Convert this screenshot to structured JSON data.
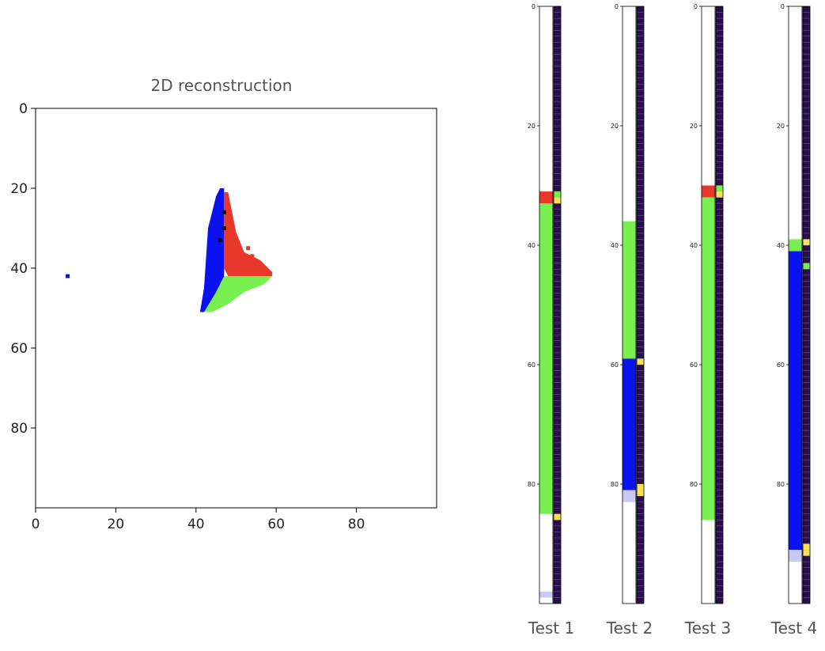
{
  "chart_data": [
    {
      "type": "heatmap",
      "title": "2D reconstruction",
      "xlim": [
        0,
        100
      ],
      "ylim": [
        100,
        0
      ],
      "xticks": [
        0,
        20,
        40,
        60,
        80
      ],
      "yticks": [
        0,
        20,
        40,
        60,
        80
      ],
      "colors": {
        "red": "#e8372b",
        "green": "#76ef4f",
        "blue": "#0a12ef",
        "black": "#111111"
      },
      "regions": [
        {
          "color": "blue",
          "points": [
            [
              46,
              20
            ],
            [
              47,
              20
            ],
            [
              47,
              48
            ],
            [
              43,
              51
            ],
            [
              41,
              51
            ],
            [
              42,
              45
            ],
            [
              43,
              30
            ],
            [
              45,
              22
            ]
          ]
        },
        {
          "color": "red",
          "points": [
            [
              47,
              21
            ],
            [
              48,
              21
            ],
            [
              50,
              31
            ],
            [
              52,
              36
            ],
            [
              56,
              38
            ],
            [
              59,
              41
            ],
            [
              59,
              42
            ],
            [
              48,
              42
            ],
            [
              47,
              40
            ]
          ]
        },
        {
          "color": "green",
          "points": [
            [
              47,
              42
            ],
            [
              59,
              42
            ],
            [
              57,
              44
            ],
            [
              52,
              46
            ],
            [
              48,
              49
            ],
            [
              44,
              51
            ],
            [
              42,
              51
            ],
            [
              45,
              46
            ]
          ]
        }
      ],
      "spots": [
        {
          "color": "blue",
          "x": 8,
          "y": 42
        },
        {
          "color": "red",
          "x": 54,
          "y": 37
        },
        {
          "color": "red",
          "x": 55,
          "y": 39
        },
        {
          "color": "red",
          "x": 53,
          "y": 35
        },
        {
          "color": "black",
          "x": 47,
          "y": 26
        },
        {
          "color": "black",
          "x": 47,
          "y": 30
        },
        {
          "color": "black",
          "x": 46,
          "y": 33
        }
      ]
    },
    {
      "type": "heatmap",
      "label": "Test 1",
      "yticks": [
        0,
        20,
        40,
        60,
        80
      ],
      "ylim": [
        0,
        100
      ],
      "segments": [
        {
          "color": "red",
          "from": 31,
          "to": 33
        },
        {
          "color": "green",
          "from": 33,
          "to": 85
        },
        {
          "color": "lavender",
          "from": 98,
          "to": 99
        }
      ],
      "markers": [
        {
          "color": "green",
          "at": 31
        },
        {
          "color": "yellow",
          "at": 32
        },
        {
          "color": "yellow",
          "at": 85
        }
      ]
    },
    {
      "type": "heatmap",
      "label": "Test 2",
      "yticks": [
        0,
        20,
        40,
        60,
        80
      ],
      "ylim": [
        0,
        100
      ],
      "segments": [
        {
          "color": "green",
          "from": 36,
          "to": 59
        },
        {
          "color": "blue",
          "from": 59,
          "to": 81
        },
        {
          "color": "lavender",
          "from": 81,
          "to": 83
        }
      ],
      "markers": [
        {
          "color": "yellow",
          "at": 59
        },
        {
          "color": "yellow",
          "at": 80
        },
        {
          "color": "yellow",
          "at": 81
        }
      ]
    },
    {
      "type": "heatmap",
      "label": "Test 3",
      "yticks": [
        0,
        20,
        40,
        60,
        80
      ],
      "ylim": [
        0,
        100
      ],
      "segments": [
        {
          "color": "red",
          "from": 30,
          "to": 32
        },
        {
          "color": "green",
          "from": 32,
          "to": 86
        }
      ],
      "markers": [
        {
          "color": "green",
          "at": 30
        },
        {
          "color": "yellow",
          "at": 31
        }
      ]
    },
    {
      "type": "heatmap",
      "label": "Test 4",
      "yticks": [
        0,
        20,
        40,
        60,
        80
      ],
      "ylim": [
        0,
        100
      ],
      "segments": [
        {
          "color": "green",
          "from": 39,
          "to": 41
        },
        {
          "color": "blue",
          "from": 41,
          "to": 91
        },
        {
          "color": "lavender",
          "from": 91,
          "to": 93
        }
      ],
      "markers": [
        {
          "color": "yellow",
          "at": 39
        },
        {
          "color": "green",
          "at": 43
        },
        {
          "color": "yellow",
          "at": 90
        },
        {
          "color": "yellow",
          "at": 91
        }
      ]
    }
  ],
  "palette": {
    "red": "#e8372b",
    "green": "#76ef4f",
    "blue": "#0a12ef",
    "black": "#111111",
    "yellow": "#f5e15a",
    "lavender": "#c9c9f5",
    "strip": "#2a0f4f"
  }
}
